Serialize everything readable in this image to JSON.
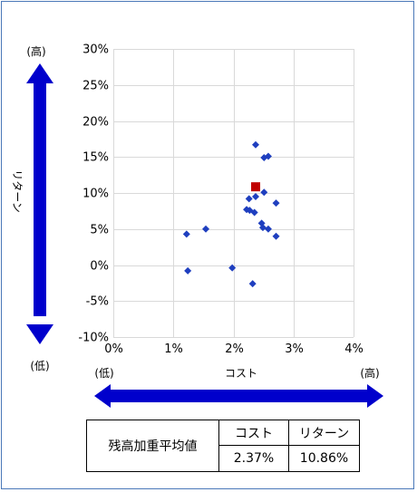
{
  "chart_data": {
    "type": "scatter",
    "xlabel": "コスト",
    "ylabel": "リターン",
    "x_low_label": "(低)",
    "x_high_label": "(高)",
    "y_high_label": "(高)",
    "y_low_label": "(低)",
    "xlim": [
      0,
      4
    ],
    "ylim": [
      -10,
      30
    ],
    "x_ticks": [
      0,
      1,
      2,
      3,
      4
    ],
    "y_ticks": [
      30,
      25,
      20,
      15,
      10,
      5,
      0,
      -5,
      -10
    ],
    "x_tick_labels": [
      "0%",
      "1%",
      "2%",
      "3%",
      "4%"
    ],
    "y_tick_labels": [
      "30%",
      "25%",
      "20%",
      "15%",
      "10%",
      "5%",
      "0%",
      "-5%",
      "-10%"
    ],
    "grid": true,
    "series": [
      {
        "marker": "diamond",
        "color": "#1f3fbf",
        "points": [
          {
            "x": 2.37,
            "y": 16.7
          },
          {
            "x": 2.51,
            "y": 14.9
          },
          {
            "x": 2.58,
            "y": 15.1
          },
          {
            "x": 2.51,
            "y": 10.1
          },
          {
            "x": 2.37,
            "y": 9.5
          },
          {
            "x": 2.26,
            "y": 9.2
          },
          {
            "x": 2.71,
            "y": 8.6
          },
          {
            "x": 2.22,
            "y": 7.7
          },
          {
            "x": 2.27,
            "y": 7.6
          },
          {
            "x": 2.35,
            "y": 7.3
          },
          {
            "x": 2.47,
            "y": 5.8
          },
          {
            "x": 2.49,
            "y": 5.2
          },
          {
            "x": 2.58,
            "y": 5.0
          },
          {
            "x": 2.71,
            "y": 4.0
          },
          {
            "x": 1.54,
            "y": 5.0
          },
          {
            "x": 1.22,
            "y": 4.3
          },
          {
            "x": 1.24,
            "y": -0.8
          },
          {
            "x": 1.98,
            "y": -0.4
          },
          {
            "x": 2.32,
            "y": -2.6
          }
        ]
      },
      {
        "marker": "square",
        "color": "#c00000",
        "points": [
          {
            "x": 2.37,
            "y": 10.86
          }
        ]
      }
    ]
  },
  "summary_table": {
    "row_label": "残高加重平均値",
    "headers": [
      "コスト",
      "リターン"
    ],
    "values": [
      "2.37%",
      "10.86%"
    ]
  }
}
